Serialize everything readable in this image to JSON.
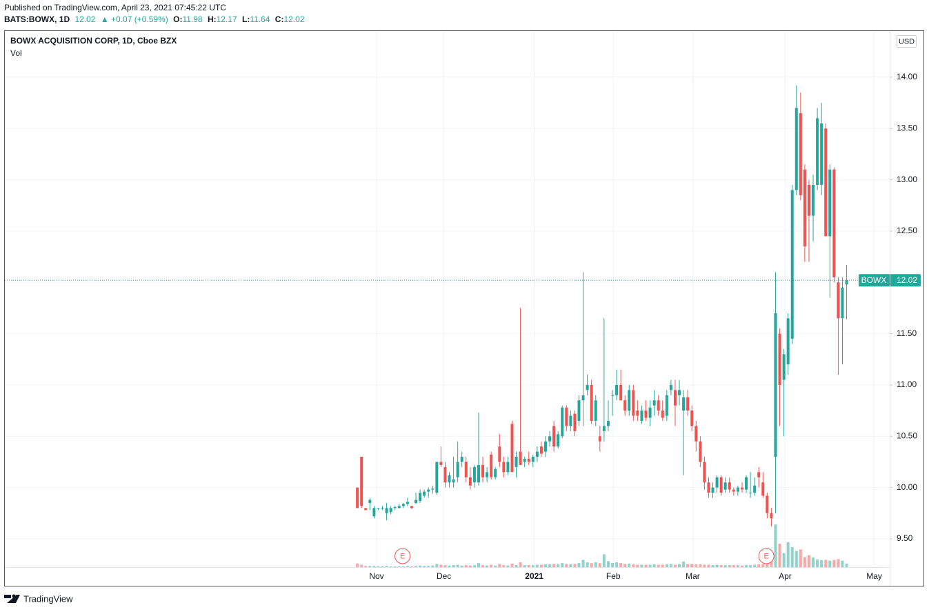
{
  "header": {
    "published": "Published on TradingView.com, April 23, 2021 07:45:22 UTC",
    "symbol": "BATS:BOWX, 1D",
    "last": "12.02",
    "change": "▲ +0.07 (+0.59%)",
    "ohlc": [
      {
        "label": "O:",
        "value": "11.98"
      },
      {
        "label": "H:",
        "value": "12.17"
      },
      {
        "label": "L:",
        "value": "11.64"
      },
      {
        "label": "C:",
        "value": "12.02"
      }
    ]
  },
  "chart_data": {
    "type": "candlestick",
    "title": "BOWX ACQUISITION CORP, 1D, Cboe BZX",
    "volume_label": "Vol",
    "currency": "USD",
    "up_color": "#26a69a",
    "down_color": "#ef5350",
    "grid": true,
    "open": [
      10.0,
      10.3,
      9.8,
      9.85,
      9.72,
      9.8,
      9.8,
      9.75,
      9.76,
      9.8,
      9.8,
      9.82,
      9.84,
      9.82,
      9.85,
      9.87,
      9.92,
      9.96,
      9.98,
      9.95,
      10.25,
      10.2,
      10.05,
      10.05,
      10.1,
      10.25,
      10.25,
      10.1,
      10.05,
      10.05,
      10.22,
      10.1,
      10.32,
      10.1,
      10.4,
      10.25,
      10.15,
      10.62,
      10.2,
      10.35,
      10.25,
      10.28,
      10.25,
      10.3,
      10.4,
      10.35,
      10.45,
      10.6,
      10.4,
      10.5,
      10.78,
      10.6,
      10.72,
      10.65,
      10.85,
      10.95,
      11.0,
      10.65,
      10.5,
      10.55,
      10.6,
      10.9,
      10.9,
      11.0,
      10.85,
      10.75,
      10.95,
      10.75,
      10.65,
      10.75,
      10.68,
      10.8,
      10.85,
      10.75,
      10.7,
      10.95,
      10.95,
      10.9,
      10.75,
      10.88,
      10.75,
      10.6,
      10.45,
      10.25,
      10.05,
      9.95,
      10.0,
      10.1,
      9.98,
      10.05,
      9.98,
      9.96,
      10.0,
      9.98,
      9.95,
      9.95,
      10.15,
      10.05,
      9.92,
      9.75,
      10.3,
      11.5,
      11.05,
      11.2,
      11.45,
      12.9,
      13.65,
      13.1,
      12.95,
      12.65,
      12.95,
      12.95,
      13.5,
      12.45,
      13.1,
      12.0,
      11.65,
      11.98
    ],
    "high": [
      10.0,
      10.3,
      9.8,
      9.9,
      9.82,
      9.8,
      9.82,
      9.85,
      9.82,
      9.82,
      9.84,
      9.85,
      9.9,
      9.82,
      9.95,
      9.98,
      9.98,
      10.0,
      10.02,
      10.25,
      10.4,
      10.25,
      10.15,
      10.3,
      10.45,
      10.35,
      10.3,
      10.2,
      10.22,
      10.73,
      10.3,
      10.2,
      10.35,
      10.2,
      10.52,
      10.3,
      10.3,
      10.65,
      10.35,
      11.75,
      10.3,
      10.35,
      10.32,
      10.4,
      10.45,
      10.5,
      10.55,
      10.65,
      10.55,
      10.8,
      10.8,
      10.75,
      10.75,
      10.9,
      12.1,
      11.1,
      11.05,
      10.9,
      10.6,
      11.65,
      10.85,
      10.95,
      11.15,
      11.15,
      10.9,
      11.0,
      11.0,
      10.85,
      10.8,
      10.85,
      10.85,
      10.95,
      10.9,
      10.85,
      10.95,
      11.05,
      11.05,
      11.05,
      10.95,
      10.95,
      10.8,
      10.65,
      10.5,
      10.3,
      10.1,
      10.05,
      10.12,
      10.12,
      10.1,
      10.1,
      10.0,
      10.02,
      10.05,
      10.12,
      10.15,
      10.1,
      10.2,
      10.15,
      9.95,
      9.8,
      12.1,
      11.55,
      11.35,
      11.7,
      12.95,
      13.92,
      13.85,
      13.15,
      13.0,
      13.05,
      13.7,
      13.75,
      13.55,
      13.15,
      13.12,
      12.05,
      12.05,
      12.17
    ],
    "low": [
      9.8,
      9.8,
      9.78,
      9.78,
      9.7,
      9.78,
      9.78,
      9.68,
      9.74,
      9.78,
      9.8,
      9.8,
      9.82,
      9.79,
      9.84,
      9.85,
      9.9,
      9.9,
      9.94,
      9.93,
      10.2,
      10.0,
      10.0,
      10.0,
      10.05,
      10.2,
      10.05,
      9.98,
      10.0,
      10.02,
      10.05,
      10.05,
      10.08,
      10.08,
      10.2,
      10.1,
      10.12,
      10.15,
      10.1,
      10.22,
      10.2,
      10.22,
      10.2,
      10.25,
      10.3,
      10.3,
      10.4,
      10.35,
      10.38,
      10.48,
      10.55,
      10.55,
      10.5,
      10.6,
      10.6,
      10.9,
      10.62,
      10.6,
      10.35,
      10.45,
      10.55,
      10.7,
      10.85,
      10.85,
      10.7,
      10.7,
      10.65,
      10.65,
      10.62,
      10.65,
      10.6,
      10.7,
      10.7,
      10.65,
      10.65,
      10.9,
      10.6,
      10.8,
      10.12,
      10.7,
      10.55,
      10.35,
      10.2,
      9.98,
      9.9,
      9.9,
      9.95,
      9.92,
      9.95,
      9.95,
      9.92,
      9.92,
      9.95,
      9.95,
      9.9,
      9.92,
      10.0,
      9.9,
      9.7,
      9.62,
      9.75,
      10.6,
      10.5,
      11.1,
      11.4,
      12.85,
      12.8,
      12.2,
      12.2,
      12.4,
      12.9,
      12.85,
      12.45,
      11.85,
      12.0,
      11.1,
      11.2,
      11.64
    ],
    "close": [
      9.8,
      9.82,
      9.78,
      9.88,
      9.8,
      9.8,
      9.8,
      9.8,
      9.8,
      9.81,
      9.82,
      9.84,
      9.86,
      9.8,
      9.88,
      9.95,
      9.96,
      9.98,
      9.99,
      10.25,
      10.22,
      10.05,
      10.12,
      10.08,
      10.25,
      10.3,
      10.1,
      10.02,
      10.2,
      10.22,
      10.1,
      10.15,
      10.1,
      10.18,
      10.25,
      10.15,
      10.25,
      10.15,
      10.3,
      10.22,
      10.28,
      10.25,
      10.3,
      10.35,
      10.33,
      10.45,
      10.5,
      10.4,
      10.52,
      10.78,
      10.6,
      10.7,
      10.55,
      10.85,
      10.9,
      11.0,
      10.65,
      10.85,
      10.45,
      10.6,
      10.65,
      10.9,
      11.0,
      10.85,
      10.75,
      10.95,
      10.7,
      10.7,
      10.75,
      10.68,
      10.78,
      10.85,
      10.75,
      10.68,
      10.9,
      11.0,
      10.8,
      10.95,
      10.88,
      10.75,
      10.6,
      10.45,
      10.25,
      10.05,
      9.95,
      10.0,
      10.1,
      9.95,
      10.05,
      9.98,
      9.96,
      10.0,
      9.98,
      10.1,
      9.95,
      10.02,
      10.1,
      9.92,
      9.75,
      9.7,
      11.7,
      11.0,
      11.3,
      11.65,
      12.9,
      13.7,
      12.85,
      12.35,
      12.65,
      12.95,
      13.6,
      13.55,
      12.45,
      13.1,
      12.05,
      11.65,
      11.95,
      12.02
    ],
    "volume": [
      0.9,
      0.6,
      0.3,
      0.3,
      0.3,
      0.2,
      0.2,
      0.3,
      0.2,
      0.2,
      0.2,
      0.2,
      0.3,
      0.2,
      0.3,
      0.4,
      0.3,
      0.3,
      0.4,
      0.8,
      0.6,
      0.5,
      0.4,
      0.5,
      0.6,
      0.4,
      0.5,
      0.4,
      0.5,
      1.0,
      0.5,
      0.4,
      0.6,
      0.4,
      0.8,
      0.5,
      0.4,
      0.9,
      0.5,
      1.2,
      0.5,
      0.5,
      0.5,
      0.6,
      0.6,
      0.7,
      0.7,
      0.8,
      0.7,
      1.0,
      0.8,
      0.7,
      0.8,
      1.0,
      1.8,
      1.2,
      1.0,
      1.2,
      1.0,
      3.2,
      1.5,
      1.0,
      1.2,
      1.0,
      0.8,
      0.9,
      0.7,
      0.6,
      0.6,
      0.6,
      0.6,
      0.7,
      0.6,
      0.6,
      0.7,
      0.8,
      0.6,
      0.7,
      1.4,
      0.8,
      0.8,
      0.7,
      0.7,
      0.6,
      0.6,
      0.5,
      0.6,
      0.5,
      0.5,
      0.5,
      0.5,
      0.5,
      0.4,
      0.5,
      0.5,
      0.6,
      0.7,
      0.8,
      1.2,
      2.5,
      10.6,
      5.8,
      3.5,
      6.2,
      5.0,
      4.0,
      4.4,
      2.5,
      3.0,
      2.4,
      1.9,
      1.7,
      1.8,
      1.6,
      1.8,
      2.0,
      1.6,
      0.9
    ],
    "vlim": [
      0,
      12
    ],
    "xlim": [
      -84.3,
      127.3
    ],
    "xticks": [
      {
        "value": 4.6,
        "label": "Nov"
      },
      {
        "value": 20.7,
        "label": "Dec"
      },
      {
        "value": 42.3,
        "label": "2021"
      },
      {
        "value": 61.2,
        "label": "Feb"
      },
      {
        "value": 80.2,
        "label": "Mar"
      },
      {
        "value": 102.3,
        "label": "Apr"
      },
      {
        "value": 123.6,
        "label": "May"
      }
    ],
    "ylim": [
      9.224,
      14.45
    ],
    "yticks": [
      {
        "value": 9.5,
        "label": "9.50"
      },
      {
        "value": 10,
        "label": "10.00"
      },
      {
        "value": 10.5,
        "label": "10.50"
      },
      {
        "value": 11,
        "label": "11.00"
      },
      {
        "value": 11.5,
        "label": "11.50"
      },
      {
        "value": 12,
        "label": "12.00"
      },
      {
        "value": 12.5,
        "label": "12.50"
      },
      {
        "value": 13,
        "label": "13.00"
      },
      {
        "value": 13.5,
        "label": "13.50"
      },
      {
        "value": 14,
        "label": "14.00"
      }
    ],
    "events": [
      {
        "label": "E",
        "x": 10.8
      },
      {
        "label": "E",
        "x": 97.8
      }
    ],
    "last_name": "BOWX",
    "last_price": 12.02
  },
  "footer": {
    "brand": "TradingView"
  }
}
